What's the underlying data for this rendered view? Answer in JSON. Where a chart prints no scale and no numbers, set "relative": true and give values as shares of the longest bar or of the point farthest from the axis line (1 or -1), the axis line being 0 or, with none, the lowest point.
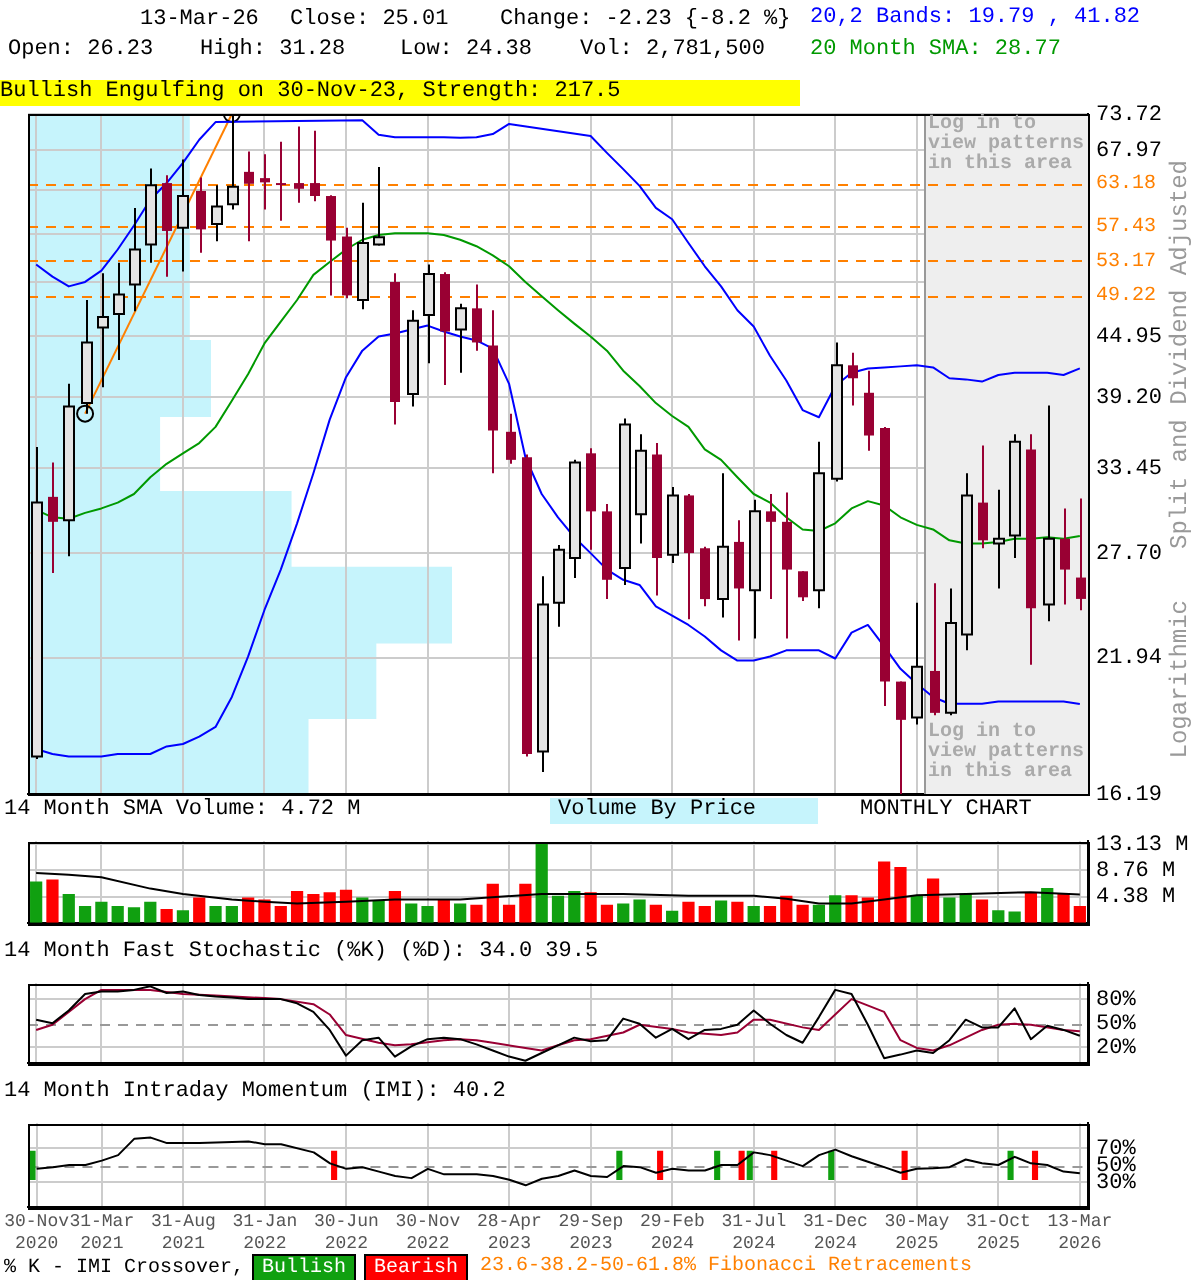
{
  "chart_data": [
    {
      "type": "candlestick",
      "categories": [
        "30-Nov 2020",
        null,
        null,
        null,
        "31-Mar 2021",
        null,
        null,
        null,
        null,
        "31-Aug 2021",
        null,
        null,
        null,
        null,
        "31-Jan 2022",
        null,
        null,
        null,
        null,
        "30-Jun 2022",
        null,
        null,
        null,
        null,
        "30-Nov 2022",
        null,
        null,
        null,
        null,
        "28-Apr 2023",
        null,
        null,
        null,
        null,
        "29-Sep 2023",
        null,
        null,
        null,
        null,
        "29-Feb 2024",
        null,
        null,
        null,
        null,
        "31-Jul 2024",
        null,
        null,
        null,
        null,
        "31-Dec 2024",
        null,
        null,
        null,
        null,
        "30-May 2025",
        null,
        null,
        null,
        null,
        "31-Oct 2025",
        null,
        null,
        null,
        null,
        "13-Mar 2026"
      ],
      "ohlc": [
        [
          17.6,
          35.1,
          17.5,
          31.0
        ],
        [
          31.4,
          33.9,
          26.5,
          29.7
        ],
        [
          29.8,
          40.4,
          27.5,
          38.4
        ],
        [
          38.7,
          48.7,
          37.8,
          44.3
        ],
        [
          45.8,
          51.7,
          40.1,
          46.9
        ],
        [
          47.2,
          52.9,
          42.6,
          49.3
        ],
        [
          50.4,
          59.8,
          47.5,
          54.5
        ],
        [
          55.1,
          65.3,
          52.9,
          62.9
        ],
        [
          63.2,
          64.3,
          51.3,
          56.8
        ],
        [
          57.2,
          66.6,
          51.9,
          61.4
        ],
        [
          62.1,
          64.0,
          54.1,
          57.0
        ],
        [
          57.7,
          62.9,
          55.5,
          60.0
        ],
        [
          60.3,
          73.72,
          59.6,
          62.7
        ],
        [
          64.8,
          67.8,
          55.5,
          63.1
        ],
        [
          63.9,
          67.4,
          59.6,
          63.3
        ],
        [
          63.2,
          69.3,
          58.1,
          63.0
        ],
        [
          63.2,
          71.7,
          60.5,
          62.4
        ],
        [
          63.2,
          71.0,
          60.7,
          61.4
        ],
        [
          61.4,
          61.5,
          49.2,
          55.6
        ],
        [
          56.1,
          57.2,
          48.9,
          49.2
        ],
        [
          48.7,
          60.5,
          47.7,
          55.3
        ],
        [
          55.1,
          65.5,
          55.0,
          56.0
        ],
        [
          50.7,
          51.7,
          36.9,
          38.8
        ],
        [
          39.5,
          47.6,
          38.4,
          46.5
        ],
        [
          47.1,
          52.7,
          42.3,
          51.6
        ],
        [
          51.6,
          51.8,
          40.3,
          45.4
        ],
        [
          45.6,
          48.3,
          41.4,
          47.8
        ],
        [
          47.8,
          50.4,
          43.5,
          44.3
        ],
        [
          44.0,
          47.6,
          33.1,
          36.4
        ],
        [
          36.3,
          37.8,
          33.8,
          34.1
        ],
        [
          34.3,
          34.5,
          17.6,
          17.7
        ],
        [
          17.8,
          26.3,
          17.0,
          24.7
        ],
        [
          24.8,
          28.2,
          23.5,
          27.9
        ],
        [
          27.4,
          34.1,
          26.2,
          33.9
        ],
        [
          34.6,
          35.0,
          27.9,
          30.4
        ],
        [
          30.4,
          30.9,
          25.0,
          26.1
        ],
        [
          26.8,
          37.4,
          25.8,
          36.9
        ],
        [
          30.2,
          36.1,
          28.3,
          34.8
        ],
        [
          34.5,
          35.4,
          25.2,
          27.4
        ],
        [
          27.6,
          32.1,
          27.1,
          31.5
        ],
        [
          31.5,
          31.6,
          23.9,
          27.7
        ],
        [
          28.0,
          28.1,
          24.6,
          25.0
        ],
        [
          25.0,
          33.1,
          24.0,
          28.1
        ],
        [
          28.4,
          29.8,
          22.8,
          25.6
        ],
        [
          25.5,
          31.2,
          22.9,
          30.4
        ],
        [
          30.4,
          31.6,
          25.0,
          29.7
        ],
        [
          29.7,
          31.7,
          22.9,
          26.7
        ],
        [
          26.6,
          26.6,
          24.9,
          25.1
        ],
        [
          25.5,
          35.5,
          24.5,
          33.1
        ],
        [
          32.7,
          44.3,
          32.5,
          42.1
        ],
        [
          42.1,
          43.3,
          38.5,
          40.9
        ],
        [
          39.6,
          41.6,
          34.8,
          36.0
        ],
        [
          36.6,
          36.7,
          19.7,
          20.8
        ],
        [
          20.8,
          20.8,
          16.19,
          19.1
        ],
        [
          19.2,
          24.8,
          18.9,
          21.5
        ],
        [
          21.3,
          25.9,
          19.3,
          19.4
        ],
        [
          19.4,
          25.6,
          19.3,
          23.7
        ],
        [
          23.1,
          33.1,
          22.3,
          31.5
        ],
        [
          31.0,
          35.2,
          28.0,
          28.5
        ],
        [
          28.3,
          31.9,
          25.6,
          28.6
        ],
        [
          28.8,
          36.1,
          27.4,
          35.5
        ],
        [
          34.9,
          36.1,
          21.6,
          24.5
        ],
        [
          24.7,
          38.5,
          23.8,
          28.6
        ],
        [
          28.6,
          30.6,
          24.7,
          26.7
        ],
        [
          26.23,
          31.28,
          24.38,
          25.01
        ]
      ],
      "series": [
        {
          "type": "line",
          "color": "#0000ff",
          "values": [
            52.7,
            51.3,
            50.2,
            50.7,
            52.0,
            54.5,
            57.5,
            60.9,
            63.2,
            66.1,
            69.6,
            72.4,
            null,
            null,
            null,
            null,
            null,
            null,
            null,
            null,
            72.7,
            70.4,
            70.0,
            70.0,
            70.0,
            70.0,
            69.9,
            70.0,
            70.5,
            72.1,
            null,
            null,
            null,
            null,
            70.2,
            67.6,
            65.2,
            62.8,
            59.8,
            58.3,
            55.3,
            52.5,
            50.2,
            47.6,
            45.9,
            43.0,
            40.7,
            38.1,
            37.5,
            40.2,
            41.4,
            41.8,
            41.9,
            42.0,
            42.1,
            41.9,
            40.9,
            40.8,
            40.6,
            41.2,
            41.4,
            41.4,
            41.4,
            41.2,
            41.82
          ]
        },
        {
          "type": "line",
          "color": "#0000ff",
          "values": [
            17.9,
            17.7,
            17.6,
            17.6,
            17.6,
            17.7,
            17.7,
            17.7,
            18.0,
            18.1,
            18.4,
            18.8,
            20.1,
            22.0,
            24.4,
            26.7,
            29.6,
            33.1,
            37.3,
            41.0,
            43.5,
            44.9,
            45.2,
            45.6,
            46.0,
            45.4,
            44.9,
            44.5,
            43.7,
            40.4,
            34.3,
            31.6,
            30.0,
            28.7,
            27.7,
            26.7,
            26.1,
            25.8,
            24.6,
            24.1,
            23.6,
            23.0,
            22.3,
            21.8,
            21.8,
            22.0,
            22.3,
            22.3,
            22.3,
            21.9,
            23.2,
            23.6,
            22.5,
            21.4,
            20.7,
            20.1,
            19.8,
            19.8,
            19.8,
            19.9,
            19.9,
            19.9,
            19.9,
            19.9,
            19.79
          ]
        },
        {
          "type": "line",
          "color": "#009900",
          "values": [
            30.5,
            30.0,
            29.9,
            30.3,
            30.6,
            31.0,
            31.6,
            32.8,
            33.8,
            34.6,
            35.4,
            36.7,
            38.9,
            41.3,
            44.2,
            46.4,
            48.7,
            51.5,
            53.0,
            54.5,
            55.7,
            56.3,
            56.5,
            56.5,
            56.5,
            56.3,
            55.7,
            54.9,
            53.8,
            52.5,
            50.7,
            49.1,
            47.6,
            46.2,
            44.9,
            43.5,
            41.6,
            40.2,
            38.7,
            37.6,
            36.7,
            34.9,
            34.1,
            32.8,
            31.6,
            31.0,
            30.0,
            29.2,
            29.1,
            29.6,
            30.6,
            31.1,
            30.8,
            30.0,
            29.5,
            29.2,
            28.5,
            28.3,
            28.3,
            28.4,
            28.6,
            28.6,
            28.7,
            28.6,
            28.77
          ]
        },
        {
          "type": "line",
          "color": "#ff8000",
          "marker": "circle",
          "values": [
            null,
            null,
            null,
            37.8,
            null,
            null,
            null,
            null,
            null,
            null,
            null,
            null,
            73.72,
            null,
            null,
            null,
            null,
            null,
            null,
            null,
            null,
            null,
            null,
            null,
            null,
            null,
            null,
            null,
            null,
            null,
            null,
            null,
            null,
            null,
            null,
            null,
            null,
            null,
            null,
            null,
            null,
            null,
            null,
            null,
            null,
            null,
            null,
            null,
            null,
            null,
            null,
            null,
            null,
            null,
            null,
            null,
            null,
            null,
            null,
            null,
            null,
            null,
            null,
            null,
            null
          ]
        }
      ],
      "ylim": [
        16.19,
        73.72
      ],
      "yticks": [
        73.72,
        67.97,
        {
          "value": 62.22,
          "label": null
        },
        {
          "value": 56.47,
          "label": null
        },
        {
          "value": 50.72,
          "label": null
        },
        44.95,
        {
          "value": 39.2,
          "label": "39.20"
        },
        33.45,
        {
          "value": 27.7,
          "label": "27.70"
        },
        21.94,
        16.19
      ],
      "log": true,
      "grid": true,
      "tick_labels": "y",
      "ref_lines": [
        {
          "axis": "y",
          "value": 63.18,
          "label": "63.18",
          "color": "#ff8000",
          "line_style": "dashed"
        },
        {
          "axis": "y",
          "value": 57.43,
          "label": "57.43",
          "color": "#ff8000",
          "line_style": "dashed"
        },
        {
          "axis": "y",
          "value": 53.17,
          "label": "53.17",
          "color": "#ff8000",
          "line_style": "dashed"
        },
        {
          "axis": "y",
          "value": 49.22,
          "label": "49.22",
          "color": "#ff8000",
          "line_style": "dashed"
        }
      ],
      "bands": [
        {
          "axis": "x",
          "from": "30-May 2025",
          "to": "13-Mar 2026",
          "color": "#eeeeee"
        }
      ],
      "annotations": [
        "13-Mar-26",
        "Close: 25.01",
        "Change: -2.23 {-8.2 %}",
        "Open: 26.23",
        "High: 31.28",
        "Low: 24.38",
        "Vol: 2,781,500",
        "20,2 Bands: 19.79 , 41.82",
        "20 Month SMA: 28.77",
        "Bullish Engulfing on 30-Nov-23, Strength: 217.5",
        "Log in to view patterns in this area",
        "Log in to view patterns in this area",
        "Split and Dividend Adjusted",
        "Logarithmic",
        "23.6-38.2-50-61.8% Fibonacci Retracements",
        "Volume By Price"
      ]
    },
    {
      "type": "bar",
      "orientation": "horizontal",
      "relative": true,
      "color": "#c6f4fc",
      "categories": [
        null,
        null,
        null,
        null,
        null,
        null,
        null,
        null,
        null
      ],
      "values": [
        0.38,
        0.38,
        0.38,
        0.43,
        0.31,
        0.62,
        1,
        0.82,
        0.66
      ]
    },
    {
      "type": "bar",
      "title": "14 Month SMA Volume: 4.72 M",
      "annotations": [
        "MONTHLY CHART"
      ],
      "categories": [
        "30-Nov 2020",
        null,
        null,
        null,
        "31-Mar 2021",
        null,
        null,
        null,
        null,
        "31-Aug 2021",
        null,
        null,
        null,
        null,
        "31-Jan 2022",
        null,
        null,
        null,
        null,
        "30-Jun 2022",
        null,
        null,
        null,
        null,
        "30-Nov 2022",
        null,
        null,
        null,
        null,
        "28-Apr 2023",
        null,
        null,
        null,
        null,
        "29-Sep 2023",
        null,
        null,
        null,
        null,
        "29-Feb 2024",
        null,
        null,
        null,
        null,
        "31-Jul 2024",
        null,
        null,
        null,
        null,
        "31-Dec 2024",
        null,
        null,
        null,
        null,
        "30-May 2025",
        null,
        null,
        null,
        null,
        "31-Oct 2025",
        null,
        null,
        null,
        null,
        "13-Mar 2026"
      ],
      "series": [
        {
          "type": "bar",
          "values": [
            6.9,
            7.2,
            4.8,
            2.8,
            3.5,
            2.8,
            2.6,
            3.5,
            2.3,
            2.1,
            4.2,
            2.8,
            2.8,
            4.2,
            3.9,
            2.8,
            5.3,
            4.8,
            5.1,
            5.5,
            4.2,
            3.7,
            5.3,
            3.2,
            2.8,
            3.9,
            3.2,
            3.0,
            6.5,
            3.0,
            6.5,
            13.4,
            4.5,
            5.3,
            5.1,
            3.0,
            3.2,
            3.9,
            3.0,
            2.0,
            3.5,
            2.8,
            3.7,
            3.5,
            2.8,
            2.8,
            4.5,
            3.0,
            3.0,
            4.6,
            4.6,
            4.2,
            10.2,
            9.3,
            4.5,
            7.4,
            4.2,
            4.9,
            3.9,
            2.1,
            1.9,
            5.1,
            5.8,
            4.9,
            2.78
          ],
          "colors": [
            "#10a010",
            "#ff0000",
            "#10a010",
            "#10a010",
            "#10a010",
            "#10a010",
            "#10a010",
            "#10a010",
            "#ff0000",
            "#10a010",
            "#ff0000",
            "#10a010",
            "#10a010",
            "#ff0000",
            "#ff0000",
            "#ff0000",
            "#ff0000",
            "#ff0000",
            "#ff0000",
            "#ff0000",
            "#10a010",
            "#10a010",
            "#ff0000",
            "#10a010",
            "#10a010",
            "#ff0000",
            "#10a010",
            "#ff0000",
            "#ff0000",
            "#ff0000",
            "#ff0000",
            "#10a010",
            "#10a010",
            "#10a010",
            "#ff0000",
            "#ff0000",
            "#10a010",
            "#10a010",
            "#ff0000",
            "#10a010",
            "#ff0000",
            "#ff0000",
            "#10a010",
            "#ff0000",
            "#10a010",
            "#ff0000",
            "#ff0000",
            "#ff0000",
            "#10a010",
            "#10a010",
            "#ff0000",
            "#ff0000",
            "#ff0000",
            "#ff0000",
            "#10a010",
            "#ff0000",
            "#10a010",
            "#10a010",
            "#ff0000",
            "#10a010",
            "#10a010",
            "#ff0000",
            "#10a010",
            "#ff0000",
            "#ff0000"
          ]
        },
        {
          "type": "line",
          "color": "#000000",
          "values": [
            8.3,
            null,
            8.0,
            null,
            7.6,
            null,
            null,
            5.7,
            null,
            4.8,
            null,
            null,
            3.9,
            null,
            3.5,
            null,
            3.2,
            null,
            null,
            3.5,
            null,
            null,
            3.9,
            null,
            null,
            null,
            3.9,
            null,
            null,
            null,
            null,
            4.8,
            null,
            null,
            null,
            null,
            4.8,
            null,
            null,
            null,
            4.5,
            null,
            null,
            null,
            4.5,
            null,
            4.0,
            null,
            3.2,
            null,
            3.2,
            null,
            3.9,
            null,
            4.6,
            null,
            null,
            4.8,
            null,
            null,
            null,
            5.1,
            null,
            null,
            4.72
          ]
        }
      ],
      "ylim": [
        0,
        13.6
      ],
      "yticks": [
        {
          "value": 4.38,
          "label": "4.38 M"
        },
        {
          "value": 8.76,
          "label": "8.76 M"
        },
        {
          "value": 13.13,
          "label": "13.13 M"
        }
      ],
      "grid": true,
      "tick_labels": "y"
    },
    {
      "type": "line",
      "title": "14 Month Fast Stochastic (%K) (%D): 34.0 39.5",
      "categories": [
        "30-Nov 2020",
        null,
        null,
        null,
        "31-Mar 2021",
        null,
        null,
        null,
        null,
        "31-Aug 2021",
        null,
        null,
        null,
        null,
        "31-Jan 2022",
        null,
        null,
        null,
        null,
        "30-Jun 2022",
        null,
        null,
        null,
        null,
        "30-Nov 2022",
        null,
        null,
        null,
        null,
        "28-Apr 2023",
        null,
        null,
        null,
        null,
        "29-Sep 2023",
        null,
        null,
        null,
        null,
        "29-Feb 2024",
        null,
        null,
        null,
        null,
        "31-Jul 2024",
        null,
        null,
        null,
        null,
        "31-Dec 2024",
        null,
        null,
        null,
        null,
        "30-May 2025",
        null,
        null,
        null,
        null,
        "31-Oct 2025",
        null,
        null,
        null,
        null,
        "13-Mar 2026"
      ],
      "series": [
        {
          "color": "#000000",
          "values": [
            54.2,
            49.7,
            65.8,
            86.5,
            89.7,
            89.7,
            91.6,
            96.1,
            87.7,
            89.7,
            85.2,
            83.2,
            81.9,
            80,
            80,
            80,
            74.8,
            63.9,
            41.3,
            9.0,
            28.4,
            31.6,
            7.8,
            20.7,
            29.7,
            31.6,
            29.7,
            23.2,
            15.5,
            7.8,
            2.6,
            12.3,
            22.0,
            31.6,
            27.1,
            28.4,
            55.5,
            49.0,
            31.6,
            42.6,
            29.7,
            41.3,
            42.6,
            47.8,
            65.8,
            49.0,
            34.9,
            25.2,
            57.4,
            91.6,
            86.5,
            47.8,
            5.8,
            10.3,
            15.5,
            12.3,
            28.4,
            54.2,
            44.5,
            44.5,
            68.4,
            29.7,
            46.5,
            41.3,
            34.0
          ]
        },
        {
          "color": "#990033",
          "values": [
            41.3,
            47.8,
            null,
            80,
            91.6,
            null,
            null,
            91.6,
            null,
            86.5,
            null,
            84.5,
            null,
            null,
            81.3,
            80,
            null,
            73.6,
            60.7,
            34.9,
            null,
            25.2,
            22.0,
            23.2,
            null,
            28.4,
            29.7,
            28.4,
            25.2,
            null,
            18.7,
            15.5,
            22.0,
            28.4,
            29.7,
            null,
            38.1,
            47.8,
            null,
            42.6,
            38.1,
            null,
            34.9,
            38.1,
            54.2,
            54.2,
            null,
            44.5,
            41.3,
            60.7,
            80,
            null,
            63.9,
            28.4,
            18.7,
            15.5,
            22.0,
            null,
            41.3,
            47.8,
            49.0,
            47.8,
            null,
            41.3,
            39.5
          ]
        }
      ],
      "ylim": [
        0,
        100
      ],
      "yticks": [
        {
          "value": 20,
          "label": "20%"
        },
        {
          "value": 50,
          "label": "50%"
        },
        {
          "value": 80,
          "label": "80%"
        }
      ],
      "ref_lines": [
        {
          "axis": "y",
          "value": 50,
          "color": "#999999",
          "line_style": "dashed"
        }
      ],
      "grid": true,
      "tick_labels": "y"
    },
    {
      "type": "line",
      "title": "14 Month Intraday Momentum (IMI): 40.2",
      "categories": [
        "30-Nov 2020",
        null,
        null,
        null,
        "31-Mar 2021",
        null,
        null,
        null,
        null,
        "31-Aug 2021",
        null,
        null,
        null,
        null,
        "31-Jan 2022",
        null,
        null,
        null,
        null,
        "30-Jun 2022",
        null,
        null,
        null,
        null,
        "30-Nov 2022",
        null,
        null,
        null,
        null,
        "28-Apr 2023",
        null,
        null,
        null,
        null,
        "29-Sep 2023",
        null,
        null,
        null,
        null,
        "29-Feb 2024",
        null,
        null,
        null,
        null,
        "31-Jul 2024",
        null,
        null,
        null,
        null,
        "31-Dec 2024",
        null,
        null,
        null,
        null,
        "30-May 2025",
        null,
        null,
        null,
        null,
        "31-Oct 2025",
        null,
        null,
        null,
        null,
        "13-Mar 2026"
      ],
      "series": [
        {
          "color": "#000000",
          "values": [
            45.4,
            47.4,
            50.0,
            50.0,
            55.2,
            61.8,
            81.5,
            82.8,
            76.2,
            null,
            76.2,
            null,
            null,
            78.2,
            74.9,
            74.9,
            null,
            65.1,
            52.0,
            45.4,
            47.4,
            42.1,
            36.9,
            34.3,
            45.4,
            38.8,
            null,
            38.8,
            36.9,
            32.3,
            25.7,
            33.6,
            36.9,
            43.4,
            36.9,
            35.6,
            48.7,
            47.4,
            40.8,
            45.4,
            43.4,
            43.4,
            50.0,
            50.0,
            65.1,
            61.8,
            55.2,
            48.7,
            61.8,
            68.4,
            60.5,
            53.9,
            47.4,
            40.8,
            45.4,
            46.1,
            47.4,
            56.6,
            52.0,
            50.0,
            59.8,
            52.0,
            50.0,
            42.1,
            40.2
          ]
        },
        {
          "type": "bar",
          "name": "Bullish",
          "color": "#10a010",
          "values": [
            35,
            null,
            null,
            null,
            null,
            null,
            null,
            null,
            null,
            null,
            null,
            null,
            null,
            null,
            null,
            null,
            null,
            null,
            null,
            null,
            null,
            null,
            null,
            null,
            null,
            null,
            null,
            null,
            null,
            null,
            null,
            null,
            null,
            null,
            null,
            null,
            35,
            null,
            null,
            null,
            null,
            null,
            35,
            null,
            35,
            null,
            null,
            null,
            null,
            35,
            null,
            null,
            null,
            null,
            null,
            null,
            null,
            null,
            null,
            null,
            35,
            null,
            null,
            null,
            null
          ],
          "base": [
            32,
            null,
            null,
            null,
            null,
            null,
            null,
            null,
            null,
            null,
            null,
            null,
            null,
            null,
            null,
            null,
            null,
            null,
            null,
            null,
            null,
            null,
            null,
            null,
            null,
            null,
            null,
            null,
            null,
            null,
            null,
            null,
            null,
            null,
            null,
            null,
            32,
            null,
            null,
            null,
            null,
            null,
            32,
            null,
            32,
            null,
            null,
            null,
            null,
            32,
            null,
            null,
            null,
            null,
            null,
            null,
            null,
            null,
            null,
            null,
            32,
            null,
            null,
            null,
            null
          ]
        },
        {
          "type": "bar",
          "name": "Bearish",
          "color": "#ff0000",
          "values": [
            null,
            null,
            null,
            null,
            null,
            null,
            null,
            null,
            null,
            null,
            null,
            null,
            null,
            null,
            null,
            null,
            null,
            null,
            35,
            null,
            null,
            null,
            null,
            null,
            null,
            null,
            null,
            null,
            null,
            null,
            null,
            null,
            null,
            null,
            null,
            null,
            null,
            null,
            35,
            null,
            null,
            null,
            null,
            35,
            null,
            35,
            null,
            null,
            null,
            null,
            null,
            null,
            null,
            35,
            null,
            null,
            null,
            null,
            null,
            null,
            null,
            35,
            null,
            null,
            null
          ],
          "base": [
            null,
            null,
            null,
            null,
            null,
            null,
            null,
            null,
            null,
            null,
            null,
            null,
            null,
            null,
            null,
            null,
            null,
            null,
            32,
            null,
            null,
            null,
            null,
            null,
            null,
            null,
            null,
            null,
            null,
            null,
            null,
            null,
            null,
            null,
            null,
            null,
            null,
            null,
            32,
            null,
            null,
            null,
            null,
            32,
            null,
            32,
            null,
            null,
            null,
            null,
            null,
            null,
            null,
            32,
            null,
            null,
            null,
            null,
            null,
            null,
            null,
            32,
            null,
            null,
            null
          ]
        }
      ],
      "ylim": [
        0,
        100
      ],
      "yticks": [
        {
          "value": 30,
          "label": "30%"
        },
        {
          "value": 50,
          "label": "50%"
        },
        {
          "value": 70,
          "label": "70%"
        }
      ],
      "ref_lines": [
        {
          "axis": "y",
          "value": 50,
          "color": "#999999",
          "line_style": "dashed"
        }
      ],
      "grid": true,
      "legend": "bottom",
      "legend_title": "% K - IMI Crossover,"
    }
  ]
}
